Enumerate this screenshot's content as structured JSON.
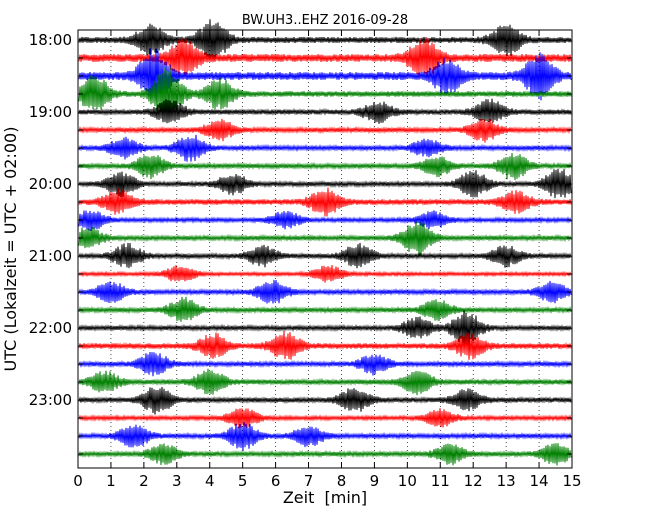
{
  "chart_data": {
    "type": "line",
    "chart_kind": "seismogram-dayplot",
    "title": "BW.UH3..EHZ 2016-09-28",
    "xlabel": "Zeit  [min]",
    "ylabel": "UTC (Lokalzeit = UTC + 02:00)",
    "xlim": [
      0,
      15
    ],
    "x_ticks": [
      "0",
      "1",
      "2",
      "3",
      "4",
      "5",
      "6",
      "7",
      "8",
      "9",
      "10",
      "11",
      "12",
      "13",
      "14",
      "15"
    ],
    "y_tick_labels": [
      "18:00",
      "19:00",
      "20:00",
      "21:00",
      "22:00",
      "23:00"
    ],
    "rows_per_hour": 4,
    "minutes_per_row": 15,
    "grid": "vertical dotted at each minute",
    "colors": [
      "#000000",
      "#ff0000",
      "#0000ff",
      "#008000"
    ],
    "series": [
      {
        "start": "18:00",
        "color": "#000000",
        "amplitude": 0.6,
        "bursts": [
          [
            2.2,
            0.9
          ],
          [
            4.1,
            1.2
          ],
          [
            13.0,
            0.9
          ]
        ]
      },
      {
        "start": "18:15",
        "color": "#ff0000",
        "amplitude": 0.8,
        "bursts": [
          [
            3.2,
            1.0
          ],
          [
            10.5,
            1.1
          ]
        ]
      },
      {
        "start": "18:30",
        "color": "#0000ff",
        "amplitude": 0.8,
        "bursts": [
          [
            2.3,
            1.6
          ],
          [
            14.0,
            1.3
          ],
          [
            11.2,
            1.0
          ]
        ]
      },
      {
        "start": "18:45",
        "color": "#008000",
        "amplitude": 0.55,
        "bursts": [
          [
            0.5,
            1.1
          ],
          [
            2.7,
            1.6
          ],
          [
            4.3,
            0.9
          ]
        ]
      },
      {
        "start": "19:00",
        "color": "#000000",
        "amplitude": 0.5,
        "bursts": [
          [
            2.8,
            0.7
          ],
          [
            9.1,
            0.6
          ],
          [
            12.5,
            0.7
          ]
        ]
      },
      {
        "start": "19:15",
        "color": "#ff0000",
        "amplitude": 0.45,
        "bursts": [
          [
            4.3,
            0.6
          ],
          [
            12.3,
            0.7
          ]
        ]
      },
      {
        "start": "19:30",
        "color": "#0000ff",
        "amplitude": 0.45,
        "bursts": [
          [
            1.4,
            0.6
          ],
          [
            3.4,
            0.8
          ],
          [
            10.6,
            0.5
          ]
        ]
      },
      {
        "start": "19:45",
        "color": "#008000",
        "amplitude": 0.45,
        "bursts": [
          [
            2.2,
            0.7
          ],
          [
            10.9,
            0.6
          ],
          [
            13.2,
            0.8
          ]
        ]
      },
      {
        "start": "20:00",
        "color": "#000000",
        "amplitude": 0.45,
        "bursts": [
          [
            1.3,
            0.7
          ],
          [
            4.7,
            0.6
          ],
          [
            12.0,
            0.8
          ],
          [
            14.6,
            0.9
          ]
        ]
      },
      {
        "start": "20:15",
        "color": "#ff0000",
        "amplitude": 0.55,
        "bursts": [
          [
            1.2,
            0.7
          ],
          [
            7.5,
            0.8
          ],
          [
            13.3,
            0.6
          ]
        ]
      },
      {
        "start": "20:30",
        "color": "#0000ff",
        "amplitude": 0.4,
        "bursts": [
          [
            0.4,
            0.6
          ],
          [
            6.3,
            0.5
          ],
          [
            10.8,
            0.5
          ]
        ]
      },
      {
        "start": "20:45",
        "color": "#008000",
        "amplitude": 0.45,
        "bursts": [
          [
            0.3,
            0.6
          ],
          [
            10.3,
            1.0
          ]
        ]
      },
      {
        "start": "21:00",
        "color": "#000000",
        "amplitude": 0.45,
        "bursts": [
          [
            1.5,
            0.7
          ],
          [
            5.6,
            0.6
          ],
          [
            8.5,
            0.7
          ],
          [
            13.0,
            0.6
          ]
        ]
      },
      {
        "start": "21:15",
        "color": "#ff0000",
        "amplitude": 0.35,
        "bursts": [
          [
            3.1,
            0.5
          ],
          [
            7.6,
            0.5
          ]
        ]
      },
      {
        "start": "21:30",
        "color": "#0000ff",
        "amplitude": 0.45,
        "bursts": [
          [
            1.0,
            0.6
          ],
          [
            5.9,
            0.7
          ],
          [
            14.4,
            0.6
          ]
        ]
      },
      {
        "start": "21:45",
        "color": "#008000",
        "amplitude": 0.45,
        "bursts": [
          [
            3.2,
            0.7
          ],
          [
            10.9,
            0.6
          ]
        ]
      },
      {
        "start": "22:00",
        "color": "#000000",
        "amplitude": 0.45,
        "bursts": [
          [
            11.8,
            1.0
          ],
          [
            10.3,
            0.6
          ]
        ]
      },
      {
        "start": "22:15",
        "color": "#ff0000",
        "amplitude": 0.55,
        "bursts": [
          [
            4.1,
            0.7
          ],
          [
            6.3,
            0.8
          ],
          [
            11.9,
            0.7
          ]
        ]
      },
      {
        "start": "22:30",
        "color": "#0000ff",
        "amplitude": 0.45,
        "bursts": [
          [
            2.3,
            0.7
          ],
          [
            9.0,
            0.6
          ]
        ]
      },
      {
        "start": "22:45",
        "color": "#008000",
        "amplitude": 0.5,
        "bursts": [
          [
            0.8,
            0.6
          ],
          [
            4.0,
            0.7
          ],
          [
            10.3,
            0.7
          ]
        ]
      },
      {
        "start": "23:00",
        "color": "#000000",
        "amplitude": 0.5,
        "bursts": [
          [
            2.4,
            0.8
          ],
          [
            8.4,
            0.7
          ],
          [
            11.8,
            0.6
          ]
        ]
      },
      {
        "start": "23:15",
        "color": "#ff0000",
        "amplitude": 0.4,
        "bursts": [
          [
            5.0,
            0.6
          ],
          [
            11.0,
            0.5
          ]
        ]
      },
      {
        "start": "23:30",
        "color": "#0000ff",
        "amplitude": 0.45,
        "bursts": [
          [
            1.7,
            0.7
          ],
          [
            5.0,
            0.8
          ],
          [
            7.0,
            0.6
          ]
        ]
      },
      {
        "start": "23:45",
        "color": "#008000",
        "amplitude": 0.45,
        "bursts": [
          [
            2.6,
            0.6
          ],
          [
            11.3,
            0.6
          ],
          [
            14.5,
            0.6
          ]
        ]
      }
    ]
  }
}
